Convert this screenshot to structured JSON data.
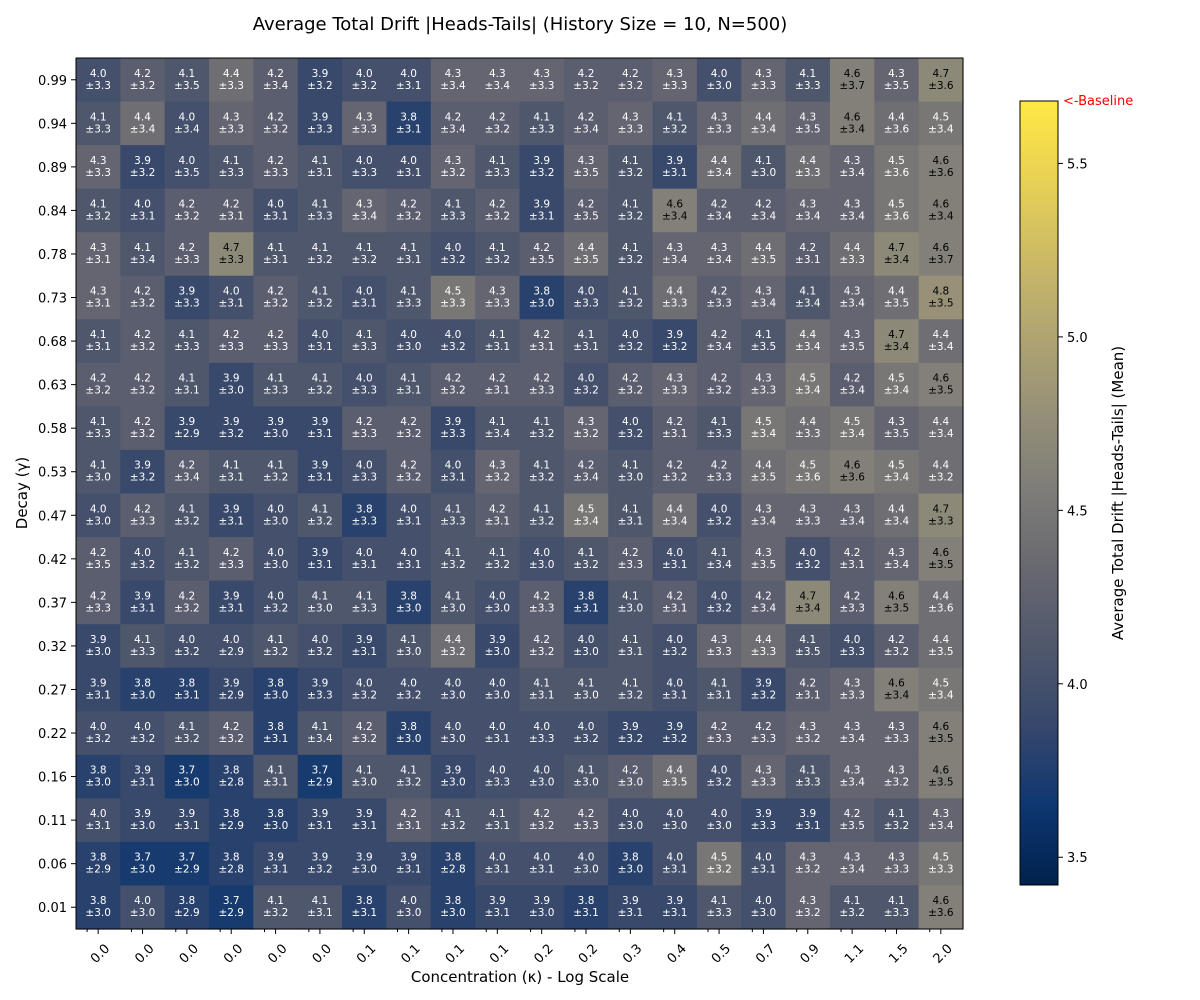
{
  "chart_data": {
    "type": "heatmap",
    "title": "Average Total Drift |Heads-Tails| (History Size = 10, N=500)",
    "xlabel": "Concentration (κ) - Log Scale",
    "ylabel": "Decay (γ)",
    "x_tick_labels": [
      "0.0",
      "0.0",
      "0.0",
      "0.0",
      "0.0",
      "0.0",
      "0.1",
      "0.1",
      "0.1",
      "0.1",
      "0.2",
      "0.2",
      "0.3",
      "0.4",
      "0.5",
      "0.7",
      "0.9",
      "1.1",
      "1.5",
      "2.0"
    ],
    "y_tick_labels": [
      "0.99",
      "0.94",
      "0.89",
      "0.84",
      "0.78",
      "0.73",
      "0.68",
      "0.63",
      "0.58",
      "0.53",
      "0.47",
      "0.42",
      "0.37",
      "0.32",
      "0.27",
      "0.22",
      "0.16",
      "0.11",
      "0.06",
      "0.01"
    ],
    "colorbar": {
      "label": "Average Total Drift |Heads-Tails| (Mean)",
      "min": 3.42,
      "max": 5.68,
      "ticks": [
        "3.5",
        "4.0",
        "4.5",
        "5.0",
        "5.5"
      ],
      "colormap": "cividis",
      "baseline_label": "<-Baseline",
      "baseline_color": "#ff0000"
    },
    "rows": [
      {
        "means": [
          "4.0",
          "4.2",
          "4.1",
          "4.4",
          "4.2",
          "3.9",
          "4.0",
          "4.0",
          "4.3",
          "4.3",
          "4.3",
          "4.2",
          "4.2",
          "4.3",
          "4.0",
          "4.3",
          "4.1",
          "4.6",
          "4.3",
          "4.7"
        ],
        "stds": [
          "±3.3",
          "±3.2",
          "±3.5",
          "±3.3",
          "±3.4",
          "±3.2",
          "±3.2",
          "±3.1",
          "±3.4",
          "±3.4",
          "±3.3",
          "±3.2",
          "±3.2",
          "±3.3",
          "±3.0",
          "±3.3",
          "±3.3",
          "±3.7",
          "±3.5",
          "±3.6"
        ]
      },
      {
        "means": [
          "4.1",
          "4.4",
          "4.0",
          "4.3",
          "4.2",
          "3.9",
          "4.3",
          "3.8",
          "4.2",
          "4.2",
          "4.1",
          "4.2",
          "4.3",
          "4.1",
          "4.3",
          "4.4",
          "4.3",
          "4.6",
          "4.4",
          "4.5"
        ],
        "stds": [
          "±3.3",
          "±3.4",
          "±3.4",
          "±3.3",
          "±3.2",
          "±3.3",
          "±3.3",
          "±3.1",
          "±3.4",
          "±3.2",
          "±3.3",
          "±3.4",
          "±3.3",
          "±3.2",
          "±3.3",
          "±3.4",
          "±3.5",
          "±3.4",
          "±3.6",
          "±3.4"
        ]
      },
      {
        "means": [
          "4.3",
          "3.9",
          "4.0",
          "4.1",
          "4.2",
          "4.1",
          "4.0",
          "4.0",
          "4.3",
          "4.1",
          "3.9",
          "4.3",
          "4.1",
          "3.9",
          "4.4",
          "4.1",
          "4.4",
          "4.3",
          "4.5",
          "4.6"
        ],
        "stds": [
          "±3.3",
          "±3.2",
          "±3.5",
          "±3.3",
          "±3.3",
          "±3.1",
          "±3.3",
          "±3.1",
          "±3.2",
          "±3.3",
          "±3.2",
          "±3.5",
          "±3.2",
          "±3.1",
          "±3.4",
          "±3.0",
          "±3.3",
          "±3.4",
          "±3.6",
          "±3.6"
        ]
      },
      {
        "means": [
          "4.1",
          "4.0",
          "4.2",
          "4.2",
          "4.0",
          "4.1",
          "4.3",
          "4.2",
          "4.1",
          "4.2",
          "3.9",
          "4.2",
          "4.1",
          "4.6",
          "4.2",
          "4.2",
          "4.3",
          "4.3",
          "4.5",
          "4.6"
        ],
        "stds": [
          "±3.2",
          "±3.1",
          "±3.2",
          "±3.1",
          "±3.1",
          "±3.3",
          "±3.4",
          "±3.2",
          "±3.3",
          "±3.2",
          "±3.1",
          "±3.5",
          "±3.2",
          "±3.4",
          "±3.4",
          "±3.4",
          "±3.4",
          "±3.4",
          "±3.6",
          "±3.4"
        ]
      },
      {
        "means": [
          "4.3",
          "4.1",
          "4.2",
          "4.7",
          "4.1",
          "4.1",
          "4.1",
          "4.1",
          "4.0",
          "4.1",
          "4.2",
          "4.4",
          "4.1",
          "4.3",
          "4.3",
          "4.4",
          "4.2",
          "4.4",
          "4.7",
          "4.6"
        ],
        "stds": [
          "±3.1",
          "±3.4",
          "±3.3",
          "±3.3",
          "±3.1",
          "±3.2",
          "±3.2",
          "±3.1",
          "±3.2",
          "±3.2",
          "±3.5",
          "±3.5",
          "±3.2",
          "±3.4",
          "±3.4",
          "±3.5",
          "±3.1",
          "±3.3",
          "±3.4",
          "±3.7"
        ]
      },
      {
        "means": [
          "4.3",
          "4.2",
          "3.9",
          "4.0",
          "4.2",
          "4.1",
          "4.0",
          "4.1",
          "4.5",
          "4.3",
          "3.8",
          "4.0",
          "4.1",
          "4.4",
          "4.2",
          "4.3",
          "4.1",
          "4.3",
          "4.4",
          "4.8"
        ],
        "stds": [
          "±3.1",
          "±3.2",
          "±3.3",
          "±3.1",
          "±3.2",
          "±3.2",
          "±3.1",
          "±3.3",
          "±3.3",
          "±3.3",
          "±3.0",
          "±3.3",
          "±3.2",
          "±3.3",
          "±3.3",
          "±3.4",
          "±3.4",
          "±3.4",
          "±3.5",
          "±3.5"
        ]
      },
      {
        "means": [
          "4.1",
          "4.2",
          "4.1",
          "4.2",
          "4.2",
          "4.0",
          "4.1",
          "4.0",
          "4.0",
          "4.1",
          "4.2",
          "4.1",
          "4.0",
          "3.9",
          "4.2",
          "4.1",
          "4.4",
          "4.3",
          "4.7",
          "4.4"
        ],
        "stds": [
          "±3.1",
          "±3.2",
          "±3.3",
          "±3.3",
          "±3.3",
          "±3.1",
          "±3.3",
          "±3.0",
          "±3.2",
          "±3.1",
          "±3.1",
          "±3.1",
          "±3.2",
          "±3.2",
          "±3.4",
          "±3.5",
          "±3.4",
          "±3.5",
          "±3.4",
          "±3.4"
        ]
      },
      {
        "means": [
          "4.2",
          "4.2",
          "4.1",
          "3.9",
          "4.1",
          "4.1",
          "4.0",
          "4.1",
          "4.2",
          "4.2",
          "4.2",
          "4.0",
          "4.2",
          "4.3",
          "4.2",
          "4.3",
          "4.5",
          "4.2",
          "4.5",
          "4.6"
        ],
        "stds": [
          "±3.2",
          "±3.2",
          "±3.1",
          "±3.0",
          "±3.3",
          "±3.2",
          "±3.3",
          "±3.1",
          "±3.2",
          "±3.1",
          "±3.3",
          "±3.2",
          "±3.2",
          "±3.3",
          "±3.2",
          "±3.3",
          "±3.4",
          "±3.4",
          "±3.4",
          "±3.5"
        ]
      },
      {
        "means": [
          "4.1",
          "4.2",
          "3.9",
          "3.9",
          "3.9",
          "3.9",
          "4.2",
          "4.2",
          "3.9",
          "4.1",
          "4.1",
          "4.3",
          "4.0",
          "4.2",
          "4.1",
          "4.5",
          "4.4",
          "4.5",
          "4.3",
          "4.4"
        ],
        "stds": [
          "±3.3",
          "±3.2",
          "±2.9",
          "±3.2",
          "±3.0",
          "±3.1",
          "±3.3",
          "±3.2",
          "±3.3",
          "±3.4",
          "±3.2",
          "±3.2",
          "±3.2",
          "±3.1",
          "±3.3",
          "±3.4",
          "±3.3",
          "±3.4",
          "±3.5",
          "±3.4"
        ]
      },
      {
        "means": [
          "4.1",
          "3.9",
          "4.2",
          "4.1",
          "4.1",
          "3.9",
          "4.0",
          "4.2",
          "4.0",
          "4.3",
          "4.1",
          "4.2",
          "4.1",
          "4.2",
          "4.2",
          "4.4",
          "4.5",
          "4.6",
          "4.5",
          "4.4"
        ],
        "stds": [
          "±3.0",
          "±3.2",
          "±3.4",
          "±3.1",
          "±3.2",
          "±3.1",
          "±3.3",
          "±3.2",
          "±3.1",
          "±3.2",
          "±3.2",
          "±3.4",
          "±3.0",
          "±3.2",
          "±3.3",
          "±3.5",
          "±3.6",
          "±3.6",
          "±3.4",
          "±3.2"
        ]
      },
      {
        "means": [
          "4.0",
          "4.2",
          "4.1",
          "3.9",
          "4.0",
          "4.1",
          "3.8",
          "4.0",
          "4.1",
          "4.2",
          "4.1",
          "4.5",
          "4.1",
          "4.4",
          "4.0",
          "4.3",
          "4.3",
          "4.3",
          "4.4",
          "4.7"
        ],
        "stds": [
          "±3.0",
          "±3.3",
          "±3.2",
          "±3.1",
          "±3.0",
          "±3.2",
          "±3.3",
          "±3.1",
          "±3.3",
          "±3.1",
          "±3.2",
          "±3.4",
          "±3.1",
          "±3.4",
          "±3.2",
          "±3.4",
          "±3.3",
          "±3.4",
          "±3.4",
          "±3.3"
        ]
      },
      {
        "means": [
          "4.2",
          "4.0",
          "4.1",
          "4.2",
          "4.0",
          "3.9",
          "4.0",
          "4.0",
          "4.1",
          "4.1",
          "4.0",
          "4.1",
          "4.2",
          "4.0",
          "4.1",
          "4.3",
          "4.0",
          "4.2",
          "4.3",
          "4.6"
        ],
        "stds": [
          "±3.5",
          "±3.2",
          "±3.2",
          "±3.3",
          "±3.0",
          "±3.1",
          "±3.1",
          "±3.1",
          "±3.2",
          "±3.2",
          "±3.0",
          "±3.2",
          "±3.3",
          "±3.1",
          "±3.4",
          "±3.5",
          "±3.2",
          "±3.1",
          "±3.4",
          "±3.5"
        ]
      },
      {
        "means": [
          "4.2",
          "3.9",
          "4.2",
          "3.9",
          "4.0",
          "4.1",
          "4.1",
          "3.8",
          "4.1",
          "4.0",
          "4.2",
          "3.8",
          "4.1",
          "4.2",
          "4.0",
          "4.2",
          "4.7",
          "4.2",
          "4.6",
          "4.4"
        ],
        "stds": [
          "±3.3",
          "±3.1",
          "±3.2",
          "±3.1",
          "±3.2",
          "±3.0",
          "±3.3",
          "±3.0",
          "±3.0",
          "±3.0",
          "±3.3",
          "±3.1",
          "±3.0",
          "±3.1",
          "±3.2",
          "±3.4",
          "±3.4",
          "±3.3",
          "±3.5",
          "±3.6"
        ]
      },
      {
        "means": [
          "3.9",
          "4.1",
          "4.0",
          "4.0",
          "4.1",
          "4.0",
          "3.9",
          "4.1",
          "4.4",
          "3.9",
          "4.2",
          "4.0",
          "4.1",
          "4.0",
          "4.3",
          "4.4",
          "4.1",
          "4.0",
          "4.2",
          "4.4"
        ],
        "stds": [
          "±3.0",
          "±3.3",
          "±3.2",
          "±2.9",
          "±3.2",
          "±3.2",
          "±3.1",
          "±3.0",
          "±3.2",
          "±3.0",
          "±3.2",
          "±3.0",
          "±3.1",
          "±3.2",
          "±3.3",
          "±3.3",
          "±3.5",
          "±3.3",
          "±3.2",
          "±3.5"
        ]
      },
      {
        "means": [
          "3.9",
          "3.8",
          "3.8",
          "3.9",
          "3.8",
          "3.9",
          "4.0",
          "4.0",
          "4.0",
          "4.0",
          "4.1",
          "4.1",
          "4.1",
          "4.0",
          "4.1",
          "3.9",
          "4.2",
          "4.3",
          "4.6",
          "4.5"
        ],
        "stds": [
          "±3.1",
          "±3.0",
          "±3.1",
          "±2.9",
          "±3.0",
          "±3.3",
          "±3.2",
          "±3.2",
          "±3.0",
          "±3.0",
          "±3.1",
          "±3.0",
          "±3.2",
          "±3.1",
          "±3.1",
          "±3.2",
          "±3.1",
          "±3.3",
          "±3.4",
          "±3.4"
        ]
      },
      {
        "means": [
          "4.0",
          "4.0",
          "4.1",
          "4.2",
          "3.8",
          "4.1",
          "4.2",
          "3.8",
          "4.0",
          "4.0",
          "4.0",
          "4.0",
          "3.9",
          "3.9",
          "4.2",
          "4.2",
          "4.3",
          "4.3",
          "4.3",
          "4.6"
        ],
        "stds": [
          "±3.2",
          "±3.2",
          "±3.2",
          "±3.2",
          "±3.1",
          "±3.4",
          "±3.2",
          "±3.0",
          "±3.0",
          "±3.1",
          "±3.3",
          "±3.2",
          "±3.2",
          "±3.2",
          "±3.3",
          "±3.3",
          "±3.2",
          "±3.4",
          "±3.3",
          "±3.5"
        ]
      },
      {
        "means": [
          "3.8",
          "3.9",
          "3.7",
          "3.8",
          "4.1",
          "3.7",
          "4.1",
          "4.1",
          "3.9",
          "4.0",
          "4.0",
          "4.1",
          "4.2",
          "4.4",
          "4.0",
          "4.3",
          "4.1",
          "4.3",
          "4.3",
          "4.6"
        ],
        "stds": [
          "±3.0",
          "±3.1",
          "±3.0",
          "±2.8",
          "±3.1",
          "±2.9",
          "±3.0",
          "±3.2",
          "±3.0",
          "±3.3",
          "±3.0",
          "±3.0",
          "±3.0",
          "±3.5",
          "±3.2",
          "±3.3",
          "±3.3",
          "±3.4",
          "±3.2",
          "±3.5"
        ]
      },
      {
        "means": [
          "4.0",
          "3.9",
          "3.9",
          "3.8",
          "3.8",
          "3.9",
          "3.9",
          "4.2",
          "4.1",
          "4.1",
          "4.2",
          "4.2",
          "4.0",
          "4.0",
          "4.0",
          "3.9",
          "3.9",
          "4.2",
          "4.1",
          "4.3"
        ],
        "stds": [
          "±3.1",
          "±3.0",
          "±3.1",
          "±2.9",
          "±3.0",
          "±3.1",
          "±3.1",
          "±3.1",
          "±3.2",
          "±3.1",
          "±3.2",
          "±3.3",
          "±3.0",
          "±3.0",
          "±3.0",
          "±3.3",
          "±3.1",
          "±3.5",
          "±3.2",
          "±3.4"
        ]
      },
      {
        "means": [
          "3.8",
          "3.7",
          "3.7",
          "3.8",
          "3.9",
          "3.9",
          "3.9",
          "3.9",
          "3.8",
          "4.0",
          "4.0",
          "4.0",
          "3.8",
          "4.0",
          "4.5",
          "4.0",
          "4.3",
          "4.3",
          "4.3",
          "4.5"
        ],
        "stds": [
          "±2.9",
          "±3.0",
          "±2.9",
          "±2.8",
          "±3.1",
          "±3.2",
          "±3.0",
          "±3.1",
          "±2.8",
          "±3.1",
          "±3.1",
          "±3.0",
          "±3.0",
          "±3.1",
          "±3.2",
          "±3.1",
          "±3.2",
          "±3.4",
          "±3.3",
          "±3.3"
        ]
      },
      {
        "means": [
          "3.8",
          "4.0",
          "3.8",
          "3.7",
          "4.1",
          "4.1",
          "3.8",
          "4.0",
          "3.8",
          "3.9",
          "3.9",
          "3.8",
          "3.9",
          "3.9",
          "4.1",
          "4.0",
          "4.3",
          "4.1",
          "4.1",
          "4.6"
        ],
        "stds": [
          "±3.0",
          "±3.0",
          "±2.9",
          "±2.9",
          "±3.2",
          "±3.1",
          "±3.1",
          "±3.0",
          "±3.0",
          "±3.1",
          "±3.0",
          "±3.1",
          "±3.1",
          "±3.1",
          "±3.3",
          "±3.0",
          "±3.2",
          "±3.2",
          "±3.3",
          "±3.6"
        ]
      }
    ]
  }
}
